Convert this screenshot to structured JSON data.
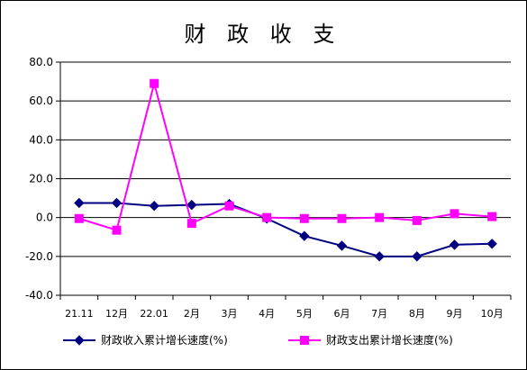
{
  "chart_data": {
    "type": "line",
    "title": "财 政 收 支",
    "xlabel": "",
    "ylabel": "",
    "categories": [
      "21.11",
      "12月",
      "22.01",
      "2月",
      "3月",
      "4月",
      "5月",
      "6月",
      "7月",
      "8月",
      "9月",
      "10月"
    ],
    "ylim": [
      -40,
      80
    ],
    "yticks": [
      80,
      60,
      40,
      20,
      0,
      -20,
      -40
    ],
    "ytick_labels": [
      "80.0",
      "60.0",
      "40.0",
      "20.0",
      "0.0",
      "-20.0",
      "-40.0"
    ],
    "grid": true,
    "legend_position": "bottom",
    "series": [
      {
        "name": "财政收入累计增长速度(%)",
        "color": "#000080",
        "marker": "diamond",
        "values": [
          7.5,
          7.5,
          6.0,
          6.5,
          7.0,
          -0.5,
          -9.5,
          -14.5,
          -20.0,
          -20.0,
          -14.0,
          -13.5
        ]
      },
      {
        "name": "财政支出累计增长速度(%)",
        "color": "#ff00ff",
        "marker": "square",
        "values": [
          -0.5,
          -6.5,
          69.0,
          -3.0,
          6.0,
          0.0,
          -0.5,
          -0.5,
          0.0,
          -1.5,
          2.0,
          0.5
        ]
      }
    ]
  }
}
